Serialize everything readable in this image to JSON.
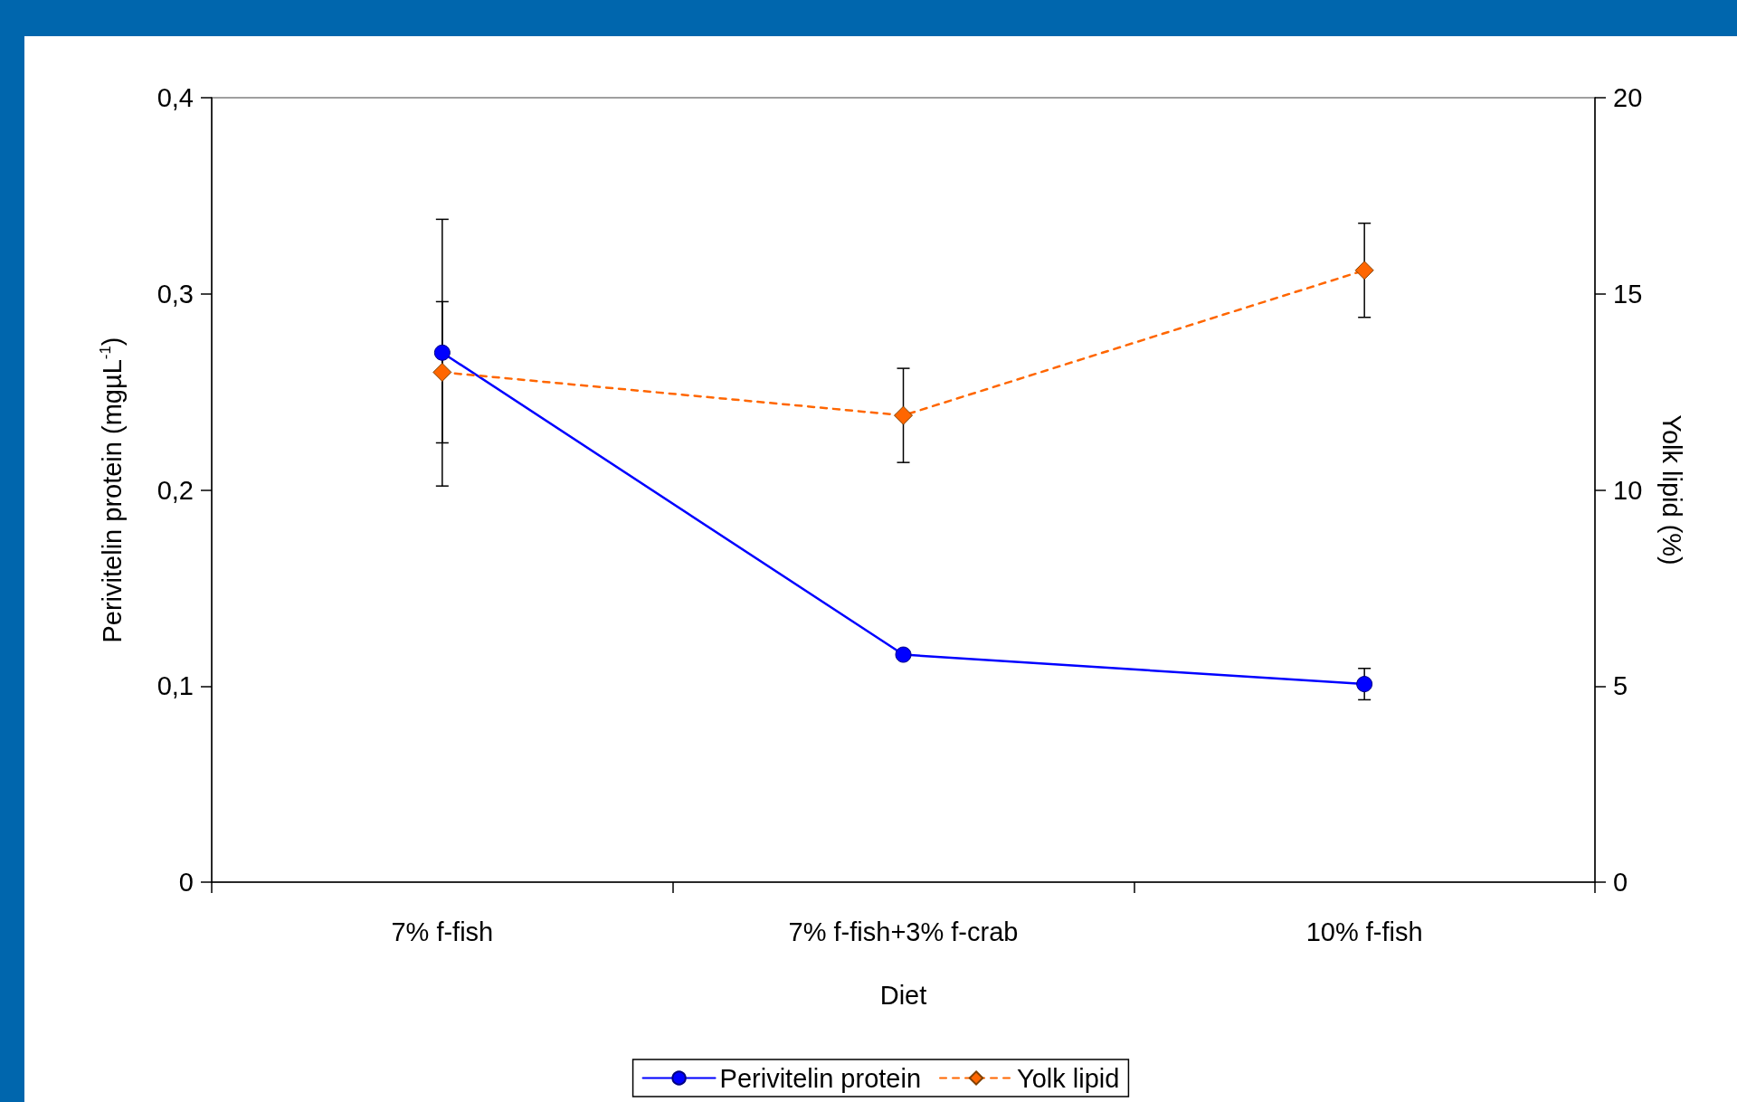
{
  "chart_data": {
    "type": "line",
    "xlabel": "Diet",
    "ylabel": "Perivitelin protein (mgµL$^{-1}$)",
    "y2label": "Yolk lipid (%)",
    "categories": [
      "7% f-fish",
      "7% f-fish+3% f-crab",
      "10% f-fish"
    ],
    "series": [
      {
        "name": "Perivitelin protein",
        "color": "#0000ff",
        "values": [
          0.27,
          0.116,
          0.101
        ],
        "errors": [
          0.068,
          null,
          0.008
        ],
        "marker": "circle",
        "line_style": "solid"
      },
      {
        "name": "Yolk lipid",
        "color": "#ff6600",
        "values": [
          13.0,
          11.9,
          15.6
        ],
        "errors": [
          1.8,
          1.2,
          1.2
        ],
        "marker": "diamond",
        "line_style": "dashed",
        "axis": "y2"
      }
    ],
    "ylim": [
      0,
      0.4
    ],
    "yticks": [
      0,
      {
        "value": 0.1,
        "label": "0,1"
      },
      {
        "value": 0.2,
        "label": "0,2"
      },
      {
        "value": 0.3,
        "label": "0,3"
      },
      {
        "value": 0.4,
        "label": "0,4"
      }
    ],
    "y2lim": [
      0,
      20
    ],
    "y2ticks": [
      0,
      5,
      10,
      15,
      20
    ],
    "grid": false,
    "legend": "bottom"
  }
}
